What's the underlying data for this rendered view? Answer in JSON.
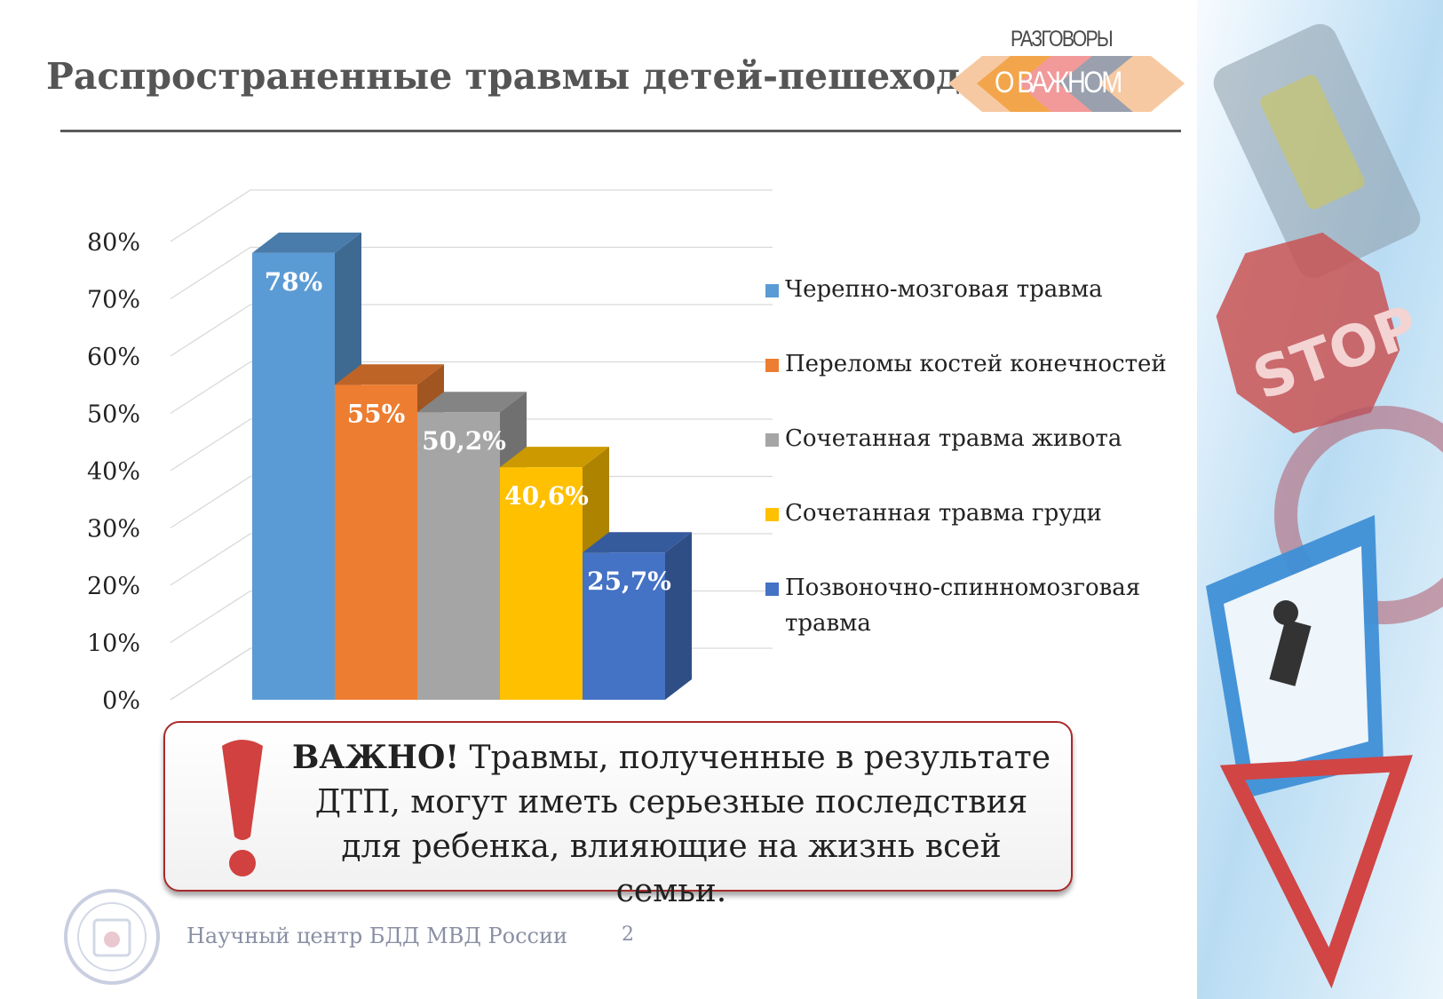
{
  "slide": {
    "title": "Распространенные травмы детей-пешеходов",
    "logo": {
      "line1": "РАЗГОВОРЫ",
      "line2": "О ВАЖНОМ"
    },
    "callout": {
      "emphasis": "ВАЖНО!",
      "text": " Травмы, полученные в результате ДТП, могут иметь серьезные последствия для ребенка, влияющие на жизнь всей семьи."
    },
    "footer": {
      "organization": "Научный центр БДД МВД России",
      "page_number": "2"
    },
    "decor_icons": [
      "road-signs-image",
      "exclamation-icon",
      "seal-logo"
    ]
  },
  "chart_data": {
    "type": "bar",
    "three_d": true,
    "categories": [
      "Черепно-мозговая травма",
      "Переломы костей конечностей",
      "Сочетанная травма живота",
      "Сочетанная травма груди",
      "Позвоночно-спинномозговая травма"
    ],
    "values": [
      78,
      55,
      50.2,
      40.6,
      25.7
    ],
    "data_labels": [
      "78%",
      "55%",
      "50,2%",
      "40,6%",
      "25,7%"
    ],
    "colors": [
      "#5b9bd5",
      "#ed7d31",
      "#a5a5a5",
      "#ffc000",
      "#4472c4"
    ],
    "y_ticks": [
      "0%",
      "10%",
      "20%",
      "30%",
      "40%",
      "50%",
      "60%",
      "70%",
      "80%"
    ],
    "ylim": [
      0,
      80
    ],
    "grid": true,
    "legend_position": "right"
  }
}
